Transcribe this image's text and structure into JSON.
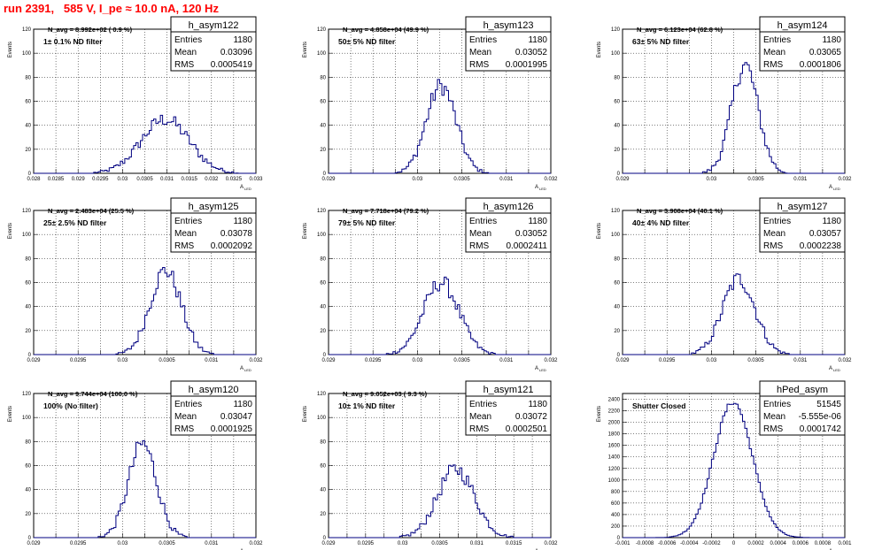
{
  "header": {
    "title": "run 2391,   585 V, I_pe ≈ 10.0 nA, 120 Hz"
  },
  "stat_labels": {
    "entries": "Entries",
    "mean": "Mean",
    "rms": "RMS"
  },
  "axis_labels": {
    "y": "Events",
    "x": "A",
    "x_sub": "LED"
  },
  "colors": {
    "histogram": "#000080",
    "annotation": "#ff00ff",
    "title": "#ff0000",
    "grid": "#000000"
  },
  "chart_data": [
    {
      "type": "histogram",
      "name": "h_asym122",
      "stats": {
        "entries": "1180",
        "mean": "0.03096",
        "rms": "0.0005419"
      },
      "navg": "N_avg = 8.992e+02 ( 0.9 %)",
      "filter": "1± 0.1% ND filter",
      "xlim": [
        0.028,
        0.033
      ],
      "ylim": [
        0,
        120
      ],
      "xticks": [
        "0.028",
        "0.0285",
        "0.029",
        "0.0295",
        "0.03",
        "0.0305",
        "0.031",
        "0.0315",
        "0.032",
        "0.0325",
        "0.033"
      ],
      "yticks": [
        "0",
        "20",
        "40",
        "60",
        "80",
        "100",
        "120"
      ],
      "peak": {
        "mean": 0.03096,
        "sigma": 0.00054,
        "amplitude": 45
      },
      "grid": true,
      "legend": "top-right"
    },
    {
      "type": "histogram",
      "name": "h_asym123",
      "stats": {
        "entries": "1180",
        "mean": "0.03052",
        "rms": "0.0001995"
      },
      "navg": "N_avg = 4.858e+04 (49.9 %)",
      "filter": "50± 5% ND filter",
      "xlim": [
        0.029,
        0.032
      ],
      "ylim": [
        0,
        120
      ],
      "xticks": [
        "0.029",
        "",
        "",
        "",
        "0.03",
        "",
        "0.0305",
        "",
        "0.031",
        "",
        "0.032"
      ],
      "yticks": [
        "0",
        "20",
        "40",
        "60",
        "80",
        "100",
        "120"
      ],
      "peak": {
        "mean": 0.03052,
        "sigma": 0.0002,
        "amplitude": 73
      },
      "grid": true,
      "legend": "top-right"
    },
    {
      "type": "histogram",
      "name": "h_asym124",
      "stats": {
        "entries": "1180",
        "mean": "0.03065",
        "rms": "0.0001806"
      },
      "navg": "N_avg = 6.123e+04 (62.8 %)",
      "filter": "63± 5% ND filter",
      "xlim": [
        0.029,
        0.032
      ],
      "ylim": [
        0,
        120
      ],
      "xticks": [
        "0.029",
        "",
        "",
        "",
        "0.03",
        "",
        "0.0305",
        "",
        "0.031",
        "",
        "0.032"
      ],
      "yticks": [
        "0",
        "20",
        "40",
        "60",
        "80",
        "100",
        "120"
      ],
      "peak": {
        "mean": 0.03065,
        "sigma": 0.00018,
        "amplitude": 90
      },
      "grid": true,
      "legend": "top-right"
    },
    {
      "type": "histogram",
      "name": "h_asym125",
      "stats": {
        "entries": "1180",
        "mean": "0.03078",
        "rms": "0.0002092"
      },
      "navg": "N_avg = 2.483e+04 (25.5 %)",
      "filter": "25± 2.5% ND filter",
      "xlim": [
        0.029,
        0.032
      ],
      "ylim": [
        0,
        120
      ],
      "xticks": [
        "0.029",
        "",
        "0.0295",
        "",
        "0.03",
        "",
        "0.0305",
        "",
        "0.031",
        "",
        "0.032"
      ],
      "yticks": [
        "0",
        "20",
        "40",
        "60",
        "80",
        "100",
        "120"
      ],
      "peak": {
        "mean": 0.03078,
        "sigma": 0.00021,
        "amplitude": 70
      },
      "grid": true,
      "legend": "top-right"
    },
    {
      "type": "histogram",
      "name": "h_asym126",
      "stats": {
        "entries": "1180",
        "mean": "0.03052",
        "rms": "0.0002411"
      },
      "navg": "N_avg = 7.718e+04 (79.2 %)",
      "filter": "79± 5% ND filter",
      "xlim": [
        0.029,
        0.032
      ],
      "ylim": [
        0,
        120
      ],
      "xticks": [
        "0.029",
        "",
        "0.0295",
        "",
        "0.03",
        "",
        "0.0305",
        "",
        "0.031",
        "",
        "0.032"
      ],
      "yticks": [
        "0",
        "20",
        "40",
        "60",
        "80",
        "100",
        "120"
      ],
      "peak": {
        "mean": 0.03052,
        "sigma": 0.00024,
        "amplitude": 60
      },
      "grid": true,
      "legend": "top-right"
    },
    {
      "type": "histogram",
      "name": "h_asym127",
      "stats": {
        "entries": "1180",
        "mean": "0.03057",
        "rms": "0.0002238"
      },
      "navg": "N_avg = 3.908e+04 (40.1 %)",
      "filter": "40± 4% ND filter",
      "xlim": [
        0.029,
        0.032
      ],
      "ylim": [
        0,
        120
      ],
      "xticks": [
        "0.029",
        "",
        "0.0295",
        "",
        "0.03",
        "",
        "0.0305",
        "",
        "0.031",
        "",
        "0.032"
      ],
      "yticks": [
        "0",
        "20",
        "40",
        "60",
        "80",
        "100",
        "120"
      ],
      "peak": {
        "mean": 0.03057,
        "sigma": 0.00022,
        "amplitude": 63
      },
      "grid": true,
      "legend": "top-right"
    },
    {
      "type": "histogram",
      "name": "h_asym120",
      "stats": {
        "entries": "1180",
        "mean": "0.03047",
        "rms": "0.0001925"
      },
      "navg": "N_avg = 9.744e+04 (100.0 %)",
      "filter": "100% (No filter)",
      "xlim": [
        0.029,
        0.032
      ],
      "ylim": [
        0,
        120
      ],
      "xticks": [
        "0.029",
        "",
        "0.0295",
        "",
        "0.03",
        "",
        "0.0305",
        "",
        "0.031",
        "",
        "0.032"
      ],
      "yticks": [
        "0",
        "20",
        "40",
        "60",
        "80",
        "100",
        "120"
      ],
      "peak": {
        "mean": 0.03047,
        "sigma": 0.00019,
        "amplitude": 78
      },
      "grid": true,
      "legend": "top-right"
    },
    {
      "type": "histogram",
      "name": "h_asym121",
      "stats": {
        "entries": "1180",
        "mean": "0.03072",
        "rms": "0.0002501"
      },
      "navg": "N_avg = 9.052e+03 ( 9.3 %)",
      "filter": "10± 1% ND filter",
      "xlim": [
        0.029,
        0.032
      ],
      "ylim": [
        0,
        120
      ],
      "xticks": [
        "0.029",
        "",
        "0.0295",
        "",
        "0.03",
        "",
        "0.0305",
        "",
        "0.031",
        "",
        "0.0315",
        "",
        "0.032"
      ],
      "yticks": [
        "0",
        "20",
        "40",
        "60",
        "80",
        "100",
        "120"
      ],
      "peak": {
        "mean": 0.03072,
        "sigma": 0.00025,
        "amplitude": 57
      },
      "grid": true,
      "legend": "top-right"
    },
    {
      "type": "histogram",
      "name": "hPed_asym",
      "stats": {
        "entries": "51545",
        "mean": "-5.555e-06",
        "rms": "0.0001742"
      },
      "navg": "",
      "filter": "Shutter Closed",
      "xlim": [
        -0.001,
        0.001
      ],
      "ylim": [
        0,
        2500
      ],
      "xticks": [
        "-0.001",
        "-0.0008",
        "-0.0006",
        "-0.0004",
        "-0.0002",
        "0",
        "0.0002",
        "0.0004",
        "0.0006",
        "0.0008",
        "0.001"
      ],
      "yticks": [
        "0",
        "200",
        "400",
        "600",
        "800",
        "1000",
        "1200",
        "1400",
        "1600",
        "1800",
        "2000",
        "2200",
        "2400"
      ],
      "peak": {
        "mean": -5.6e-06,
        "sigma": 0.000174,
        "amplitude": 2350
      },
      "grid": true,
      "legend": "top-right"
    }
  ]
}
